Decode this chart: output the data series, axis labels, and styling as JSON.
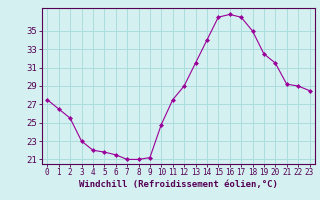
{
  "x": [
    0,
    1,
    2,
    3,
    4,
    5,
    6,
    7,
    8,
    9,
    10,
    11,
    12,
    13,
    14,
    15,
    16,
    17,
    18,
    19,
    20,
    21,
    22,
    23
  ],
  "y": [
    27.5,
    26.5,
    25.5,
    23.0,
    22.0,
    21.8,
    21.5,
    21.0,
    21.0,
    21.2,
    24.8,
    27.5,
    29.0,
    31.5,
    34.0,
    36.5,
    36.8,
    36.5,
    35.0,
    32.5,
    31.5,
    29.2,
    29.0,
    28.5
  ],
  "line_color": "#990099",
  "marker": "D",
  "marker_size": 2,
  "bg_color": "#d5f0f0",
  "grid_color": "#aadddd",
  "xlabel": "Windchill (Refroidissement éolien,°C)",
  "ylabel_ticks": [
    21,
    23,
    25,
    27,
    29,
    31,
    33,
    35
  ],
  "xlim": [
    -0.5,
    23.5
  ],
  "ylim": [
    20.5,
    37.5
  ],
  "spine_color": "#550055",
  "tick_color": "#550055",
  "label_color": "#550055",
  "xlabel_fontsize": 6.5,
  "ytick_fontsize": 6.5,
  "xtick_fontsize": 5.5
}
